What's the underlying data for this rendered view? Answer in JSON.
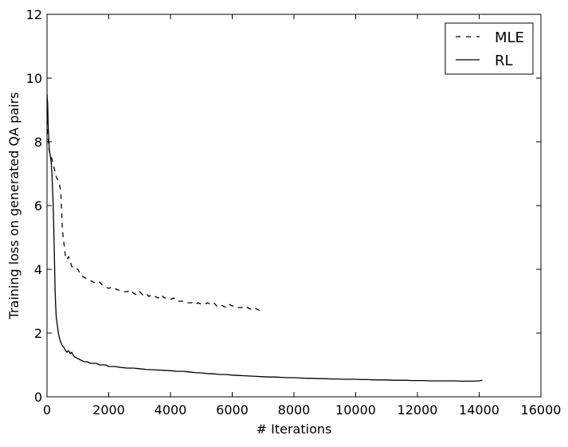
{
  "chart_data": {
    "type": "line",
    "title": "",
    "xlabel": "# Iterations",
    "ylabel": "Training loss on generated QA pairs",
    "xlim": [
      0,
      16000
    ],
    "ylim": [
      0,
      12
    ],
    "xticks": [
      0,
      2000,
      4000,
      6000,
      8000,
      10000,
      12000,
      14000,
      16000
    ],
    "yticks": [
      0,
      2,
      4,
      6,
      8,
      10,
      12
    ],
    "grid": false,
    "legend": {
      "position": "top-right"
    },
    "series": [
      {
        "name": "MLE",
        "style": "dashed",
        "color": "#000000",
        "x": [
          0,
          30,
          60,
          100,
          150,
          200,
          250,
          300,
          350,
          400,
          450,
          500,
          550,
          600,
          650,
          700,
          800,
          900,
          1000,
          1100,
          1200,
          1300,
          1400,
          1500,
          1600,
          1700,
          1800,
          1900,
          2000,
          2100,
          2200,
          2300,
          2400,
          2500,
          2600,
          2700,
          2800,
          2900,
          3000,
          3100,
          3200,
          3300,
          3400,
          3500,
          3600,
          3700,
          3800,
          3900,
          4000,
          4100,
          4200,
          4300,
          4400,
          4500,
          4600,
          4700,
          4800,
          4900,
          5000,
          5100,
          5200,
          5300,
          5400,
          5500,
          5600,
          5700,
          5800,
          5900,
          6000,
          6100,
          6200,
          6300,
          6400,
          6500,
          6600,
          6700,
          6800,
          6900,
          7000
        ],
        "y": [
          9.3,
          8.2,
          7.8,
          7.6,
          7.5,
          7.3,
          7.1,
          6.9,
          6.8,
          6.7,
          6.4,
          5.2,
          4.8,
          4.4,
          4.3,
          4.4,
          4.1,
          4.0,
          4.0,
          3.8,
          3.75,
          3.7,
          3.65,
          3.6,
          3.55,
          3.6,
          3.5,
          3.45,
          3.4,
          3.45,
          3.4,
          3.35,
          3.35,
          3.3,
          3.3,
          3.35,
          3.25,
          3.2,
          3.3,
          3.2,
          3.25,
          3.15,
          3.2,
          3.15,
          3.1,
          3.2,
          3.1,
          3.1,
          3.05,
          3.1,
          3.0,
          3.0,
          3.0,
          2.95,
          2.95,
          2.95,
          2.9,
          2.95,
          2.9,
          2.9,
          2.95,
          2.9,
          2.95,
          2.85,
          2.9,
          2.85,
          2.8,
          2.9,
          2.85,
          2.85,
          2.8,
          2.8,
          2.85,
          2.8,
          2.75,
          2.8,
          2.75,
          2.7,
          2.75
        ]
      },
      {
        "name": "RL",
        "style": "solid",
        "color": "#000000",
        "x": [
          0,
          20,
          40,
          60,
          80,
          100,
          120,
          140,
          160,
          180,
          200,
          220,
          240,
          260,
          280,
          300,
          320,
          340,
          360,
          380,
          400,
          450,
          500,
          550,
          600,
          650,
          700,
          750,
          800,
          850,
          900,
          1000,
          1100,
          1200,
          1300,
          1400,
          1500,
          1600,
          1700,
          1800,
          1900,
          2000,
          2200,
          2400,
          2600,
          2800,
          3000,
          3200,
          3400,
          3600,
          3800,
          4000,
          4200,
          4400,
          4600,
          4800,
          5000,
          5200,
          5400,
          5600,
          5800,
          6000,
          6200,
          6400,
          6600,
          6800,
          7000,
          7200,
          7400,
          7600,
          7800,
          8000,
          8200,
          8400,
          8600,
          8800,
          9000,
          9200,
          9400,
          9600,
          9800,
          10000,
          10200,
          10400,
          10600,
          10800,
          11000,
          11200,
          11400,
          11600,
          11800,
          12000,
          12200,
          12400,
          12600,
          12800,
          13000,
          13200,
          13400,
          13600,
          13800,
          14000,
          14100
        ],
        "y": [
          9.5,
          9.2,
          8.5,
          8.0,
          7.7,
          7.6,
          7.5,
          7.3,
          7.0,
          6.5,
          6.0,
          5.3,
          4.4,
          3.4,
          2.9,
          2.5,
          2.35,
          2.2,
          2.05,
          1.95,
          1.85,
          1.7,
          1.6,
          1.55,
          1.45,
          1.4,
          1.45,
          1.35,
          1.4,
          1.3,
          1.25,
          1.2,
          1.15,
          1.1,
          1.1,
          1.05,
          1.05,
          1.05,
          1.0,
          1.0,
          1.0,
          0.95,
          0.95,
          0.92,
          0.9,
          0.9,
          0.88,
          0.86,
          0.85,
          0.84,
          0.83,
          0.82,
          0.8,
          0.8,
          0.78,
          0.76,
          0.75,
          0.73,
          0.72,
          0.7,
          0.7,
          0.68,
          0.67,
          0.66,
          0.65,
          0.64,
          0.63,
          0.62,
          0.62,
          0.61,
          0.6,
          0.6,
          0.59,
          0.58,
          0.58,
          0.57,
          0.57,
          0.56,
          0.56,
          0.55,
          0.55,
          0.55,
          0.54,
          0.54,
          0.53,
          0.53,
          0.53,
          0.52,
          0.52,
          0.52,
          0.51,
          0.51,
          0.51,
          0.5,
          0.5,
          0.5,
          0.5,
          0.5,
          0.49,
          0.49,
          0.49,
          0.5,
          0.52
        ]
      }
    ]
  }
}
